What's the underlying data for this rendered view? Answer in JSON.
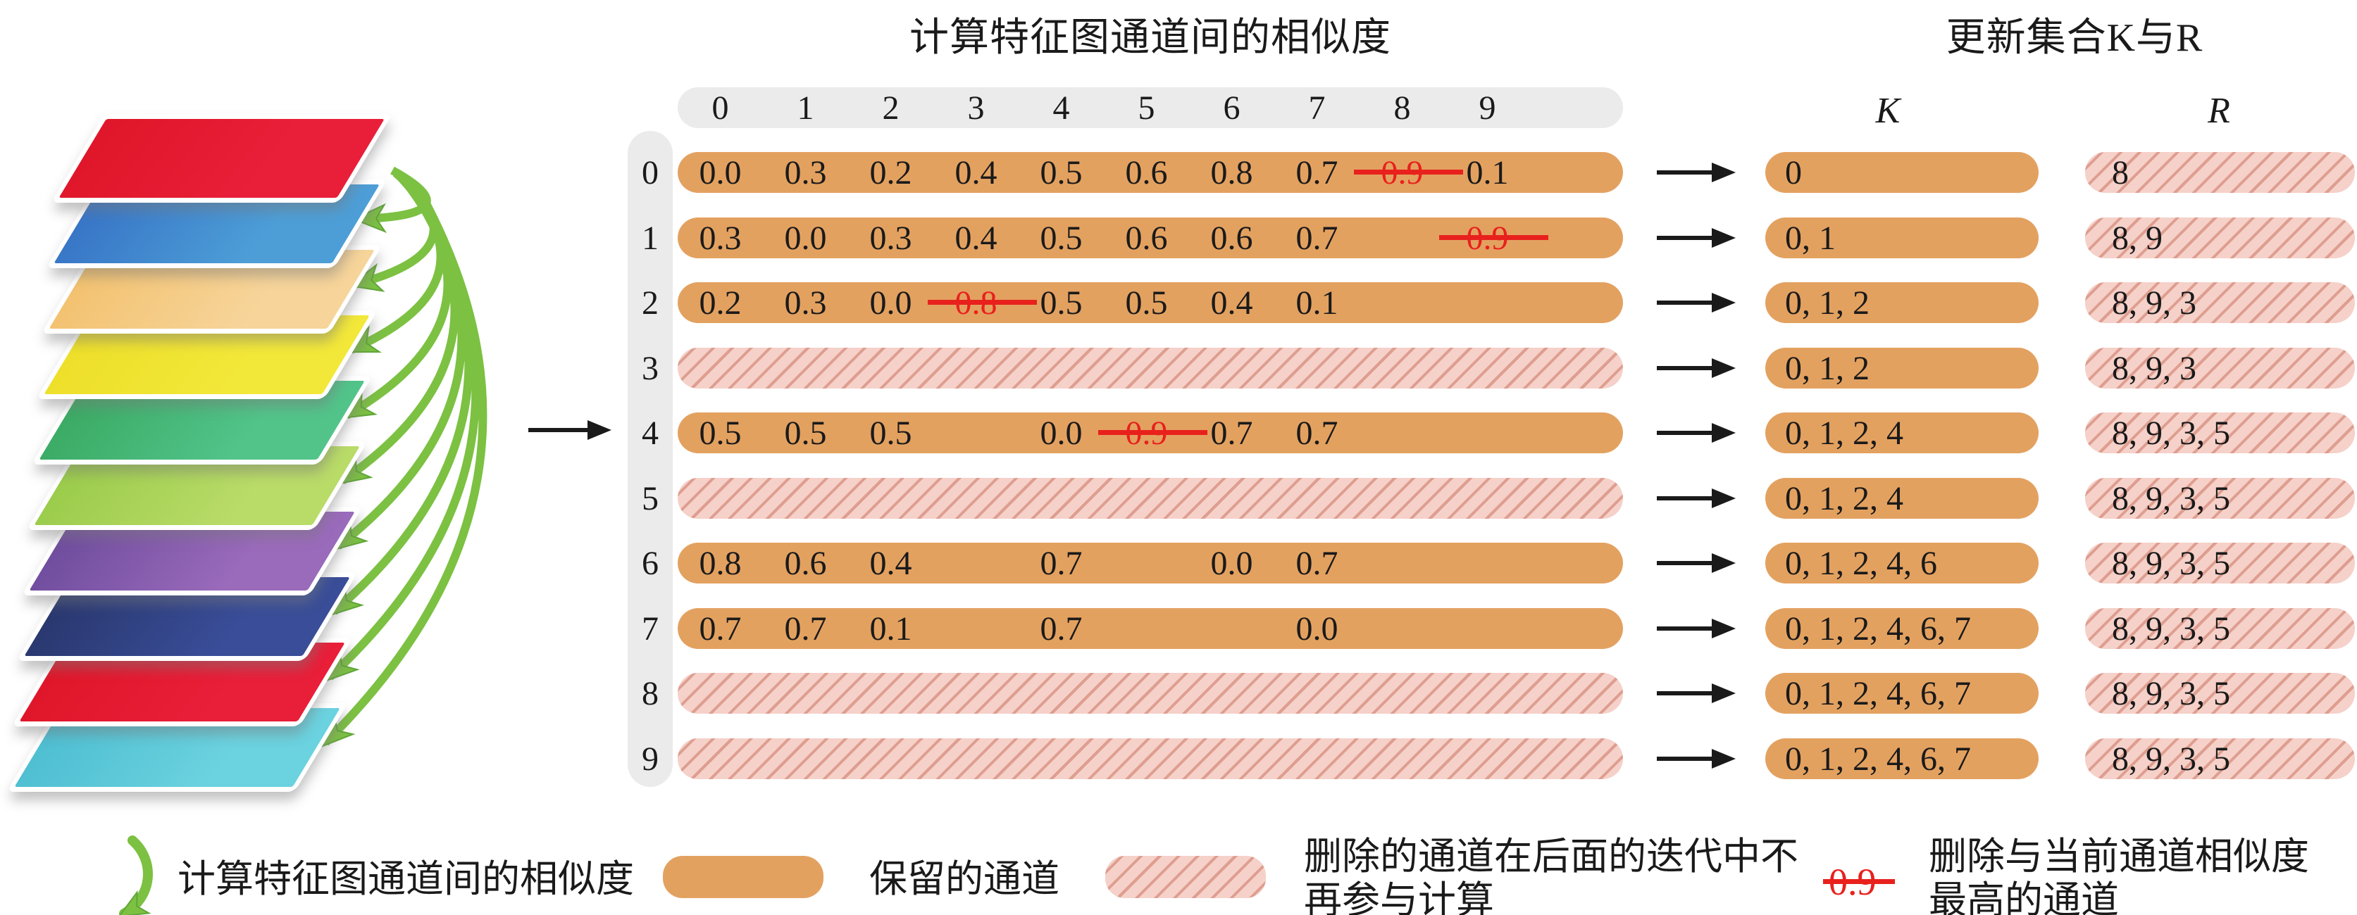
{
  "titles": {
    "similarity": "计算特征图通道间的相似度",
    "update": "更新集合K与R"
  },
  "k_header": "K",
  "r_header": "R",
  "matrix": {
    "col_headers": [
      "0",
      "1",
      "2",
      "3",
      "4",
      "5",
      "6",
      "7",
      "8",
      "9"
    ],
    "rows": [
      {
        "label": "0",
        "type": "kept",
        "cells": [
          "0.0",
          "0.3",
          "0.2",
          "0.4",
          "0.5",
          "0.6",
          "0.8",
          "0.7",
          "0.9",
          "0.1"
        ],
        "struck": [
          8
        ],
        "k": "0",
        "r": "8"
      },
      {
        "label": "1",
        "type": "kept",
        "cells": [
          "0.3",
          "0.0",
          "0.3",
          "0.4",
          "0.5",
          "0.6",
          "0.6",
          "0.7",
          "",
          "0.9"
        ],
        "struck": [
          9
        ],
        "k": "0, 1",
        "r": "8, 9"
      },
      {
        "label": "2",
        "type": "kept",
        "cells": [
          "0.2",
          "0.3",
          "0.0",
          "0.8",
          "0.5",
          "0.5",
          "0.4",
          "0.1",
          "",
          ""
        ],
        "struck": [
          3
        ],
        "k": "0, 1, 2",
        "r": "8, 9, 3"
      },
      {
        "label": "3",
        "type": "removed",
        "cells": [
          "",
          "",
          "",
          "",
          "",
          "",
          "",
          "",
          "",
          ""
        ],
        "struck": [],
        "k": "0, 1, 2",
        "r": "8, 9, 3"
      },
      {
        "label": "4",
        "type": "kept",
        "cells": [
          "0.5",
          "0.5",
          "0.5",
          "",
          "0.0",
          "0.9",
          "0.7",
          "0.7",
          "",
          ""
        ],
        "struck": [
          5
        ],
        "k": "0, 1, 2, 4",
        "r": "8, 9, 3, 5"
      },
      {
        "label": "5",
        "type": "removed",
        "cells": [
          "",
          "",
          "",
          "",
          "",
          "",
          "",
          "",
          "",
          ""
        ],
        "struck": [],
        "k": "0, 1, 2, 4",
        "r": "8, 9, 3, 5"
      },
      {
        "label": "6",
        "type": "kept",
        "cells": [
          "0.8",
          "0.6",
          "0.4",
          "",
          "0.7",
          "",
          "0.0",
          "0.7",
          "",
          ""
        ],
        "struck": [],
        "k": "0, 1, 2, 4, 6",
        "r": "8, 9, 3, 5"
      },
      {
        "label": "7",
        "type": "kept",
        "cells": [
          "0.7",
          "0.7",
          "0.1",
          "",
          "0.7",
          "",
          "",
          "0.0",
          "",
          ""
        ],
        "struck": [],
        "k": "0, 1, 2, 4, 6, 7",
        "r": "8, 9, 3, 5"
      },
      {
        "label": "8",
        "type": "removed",
        "cells": [
          "",
          "",
          "",
          "",
          "",
          "",
          "",
          "",
          "",
          ""
        ],
        "struck": [],
        "k": "0, 1, 2, 4, 6, 7",
        "r": "8, 9, 3, 5"
      },
      {
        "label": "9",
        "type": "removed",
        "cells": [
          "",
          "",
          "",
          "",
          "",
          "",
          "",
          "",
          "",
          ""
        ],
        "struck": [],
        "k": "0, 1, 2, 4, 6, 7",
        "r": "8, 9, 3, 5"
      }
    ]
  },
  "stack": {
    "layer_colors": [
      "#E3192F",
      "#3F83CC",
      "#F4C87E",
      "#EFE22F",
      "#43B371",
      "#A5D155",
      "#7E57A8",
      "#2F3F7D",
      "#E3192F",
      "#58C5D6"
    ]
  },
  "colors": {
    "kept_orange": "#E3A160",
    "removed_pink_base": "#F5D1C9",
    "removed_pink_stripe": "#DE9E90",
    "header_gray": "#EBEBEB",
    "strike_red": "#E8211D",
    "arrow_green": "#7CC142",
    "arrow_black": "#1A1A1A"
  },
  "legend": [
    {
      "icon": "green-curved-arrow",
      "label": "计算特征图通道间的相似度"
    },
    {
      "icon": "orange-pill",
      "label": "保留的通道"
    },
    {
      "icon": "pink-hatched-pill",
      "label": "删除的通道在后面的迭代中不再参与计算"
    },
    {
      "icon": "struck-value",
      "value": "0.9",
      "label": "删除与当前通道相似度最高的通道"
    }
  ]
}
